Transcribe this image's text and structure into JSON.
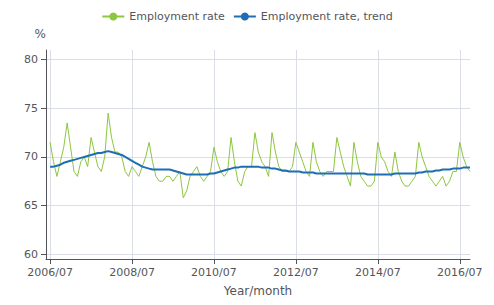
{
  "chart_data": {
    "type": "line",
    "xlabel": "Year/month",
    "ylabel": "%",
    "x": [
      2006.5,
      2006.583333,
      2006.666667,
      2006.75,
      2006.833333,
      2006.916667,
      2007.0,
      2007.083333,
      2007.166667,
      2007.25,
      2007.333333,
      2007.416667,
      2007.5,
      2007.583333,
      2007.666667,
      2007.75,
      2007.833333,
      2007.916667,
      2008.0,
      2008.083333,
      2008.166667,
      2008.25,
      2008.333333,
      2008.416667,
      2008.5,
      2008.583333,
      2008.666667,
      2008.75,
      2008.833333,
      2008.916667,
      2009.0,
      2009.083333,
      2009.166667,
      2009.25,
      2009.333333,
      2009.416667,
      2009.5,
      2009.583333,
      2009.666667,
      2009.75,
      2009.833333,
      2009.916667,
      2010.0,
      2010.083333,
      2010.166667,
      2010.25,
      2010.333333,
      2010.416667,
      2010.5,
      2010.583333,
      2010.666667,
      2010.75,
      2010.833333,
      2010.916667,
      2011.0,
      2011.083333,
      2011.166667,
      2011.25,
      2011.333333,
      2011.416667,
      2011.5,
      2011.583333,
      2011.666667,
      2011.75,
      2011.833333,
      2011.916667,
      2012.0,
      2012.083333,
      2012.166667,
      2012.25,
      2012.333333,
      2012.416667,
      2012.5,
      2012.583333,
      2012.666667,
      2012.75,
      2012.833333,
      2012.916667,
      2013.0,
      2013.083333,
      2013.166667,
      2013.25,
      2013.333333,
      2013.416667,
      2013.5,
      2013.583333,
      2013.666667,
      2013.75,
      2013.833333,
      2013.916667,
      2014.0,
      2014.083333,
      2014.166667,
      2014.25,
      2014.333333,
      2014.416667,
      2014.5,
      2014.583333,
      2014.666667,
      2014.75,
      2014.833333,
      2014.916667,
      2015.0,
      2015.083333,
      2015.166667,
      2015.25,
      2015.333333,
      2015.416667,
      2015.5,
      2015.583333,
      2015.666667,
      2015.75,
      2015.833333,
      2015.916667,
      2016.0,
      2016.083333,
      2016.166667,
      2016.25,
      2016.333333,
      2016.416667,
      2016.5,
      2016.583333,
      2016.666667,
      2016.75
    ],
    "series": [
      {
        "name": "Employment rate",
        "color": "#8dc63f",
        "values": [
          71.5,
          69.5,
          68.0,
          69.5,
          71.0,
          73.5,
          71.0,
          68.5,
          68.0,
          69.5,
          70.0,
          69.0,
          72.0,
          70.5,
          69.0,
          68.5,
          70.0,
          74.5,
          72.0,
          70.5,
          70.5,
          70.0,
          68.5,
          68.0,
          69.0,
          68.5,
          68.0,
          69.0,
          70.0,
          71.5,
          69.5,
          68.0,
          67.5,
          67.5,
          68.0,
          68.0,
          67.5,
          68.0,
          68.5,
          65.8,
          66.5,
          68.0,
          68.5,
          69.0,
          68.0,
          67.5,
          68.0,
          68.5,
          71.0,
          69.5,
          68.5,
          68.0,
          68.5,
          72.0,
          69.5,
          67.5,
          67.0,
          68.5,
          69.0,
          69.0,
          72.5,
          70.5,
          69.5,
          69.0,
          68.0,
          72.5,
          70.5,
          69.0,
          68.5,
          68.5,
          68.5,
          69.0,
          71.5,
          70.5,
          69.5,
          68.5,
          68.0,
          71.5,
          69.5,
          68.5,
          68.0,
          68.5,
          68.5,
          68.5,
          72.0,
          70.5,
          69.0,
          68.0,
          67.0,
          71.5,
          69.5,
          68.0,
          67.5,
          67.0,
          67.0,
          67.5,
          71.5,
          70.0,
          69.5,
          68.5,
          68.0,
          70.5,
          68.5,
          67.5,
          67.0,
          67.0,
          67.5,
          68.0,
          71.5,
          70.0,
          69.0,
          68.0,
          67.5,
          67.0,
          67.5,
          68.0,
          67.0,
          67.5,
          68.5,
          68.5,
          71.5,
          70.0,
          69.0,
          68.5
        ]
      },
      {
        "name": "Employment rate, trend",
        "color": "#1f6eb5",
        "values": [
          69.0,
          69.0,
          69.1,
          69.2,
          69.4,
          69.5,
          69.6,
          69.7,
          69.8,
          69.9,
          70.0,
          70.1,
          70.2,
          70.3,
          70.4,
          70.4,
          70.5,
          70.6,
          70.5,
          70.4,
          70.3,
          70.2,
          70.0,
          69.8,
          69.6,
          69.4,
          69.2,
          69.0,
          68.9,
          68.8,
          68.7,
          68.7,
          68.7,
          68.7,
          68.7,
          68.7,
          68.6,
          68.5,
          68.4,
          68.3,
          68.2,
          68.2,
          68.2,
          68.2,
          68.2,
          68.2,
          68.2,
          68.3,
          68.3,
          68.4,
          68.5,
          68.6,
          68.7,
          68.8,
          68.9,
          68.9,
          69.0,
          69.0,
          69.0,
          69.0,
          69.0,
          69.0,
          68.9,
          68.9,
          68.9,
          68.8,
          68.8,
          68.7,
          68.6,
          68.6,
          68.5,
          68.5,
          68.5,
          68.5,
          68.4,
          68.4,
          68.4,
          68.4,
          68.3,
          68.3,
          68.3,
          68.3,
          68.3,
          68.3,
          68.3,
          68.3,
          68.3,
          68.3,
          68.3,
          68.3,
          68.3,
          68.3,
          68.3,
          68.2,
          68.2,
          68.2,
          68.2,
          68.2,
          68.2,
          68.2,
          68.2,
          68.3,
          68.3,
          68.3,
          68.3,
          68.3,
          68.3,
          68.3,
          68.4,
          68.4,
          68.5,
          68.5,
          68.5,
          68.6,
          68.6,
          68.7,
          68.7,
          68.7,
          68.8,
          68.8,
          68.8,
          68.9,
          68.9,
          68.9
        ]
      }
    ],
    "xlim": [
      2006.4,
      2016.75
    ],
    "xticks": [
      {
        "value": 2006.5,
        "label": "2006/07"
      },
      {
        "value": 2008.5,
        "label": "2008/07"
      },
      {
        "value": 2010.5,
        "label": "2010/07"
      },
      {
        "value": 2012.5,
        "label": "2012/07"
      },
      {
        "value": 2014.5,
        "label": "2014/07"
      },
      {
        "value": 2016.5,
        "label": "2016/07"
      }
    ],
    "ylim": [
      59.5,
      81
    ],
    "yticks": [
      60,
      65,
      70,
      75,
      80
    ],
    "grid": true,
    "legend": "top"
  }
}
